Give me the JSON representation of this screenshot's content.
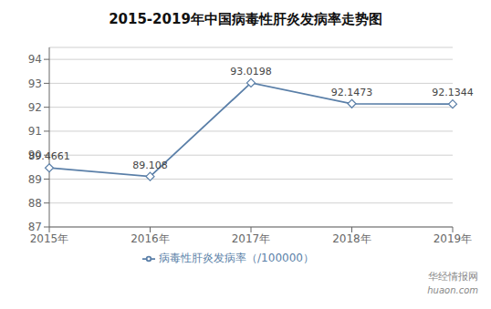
{
  "chart_data": {
    "type": "line",
    "title": "2015-2019年中国病毒性肝炎发病率走势图",
    "categories": [
      "2015年",
      "2016年",
      "2017年",
      "2018年",
      "2019年"
    ],
    "series": [
      {
        "name": "病毒性肝炎发病率（/100000）",
        "color": "#5a7fa8",
        "marker": "diamond",
        "values": [
          89.4661,
          89.108,
          93.0198,
          92.1473,
          92.1344
        ]
      }
    ],
    "ylim": [
      87,
      94.5
    ],
    "yticks": [
      87,
      88,
      89,
      90,
      91,
      92,
      93,
      94
    ],
    "grid": true,
    "legend": "bottom",
    "data_labels": true,
    "annotations": [
      "华经情报网",
      "huaon.com"
    ]
  }
}
